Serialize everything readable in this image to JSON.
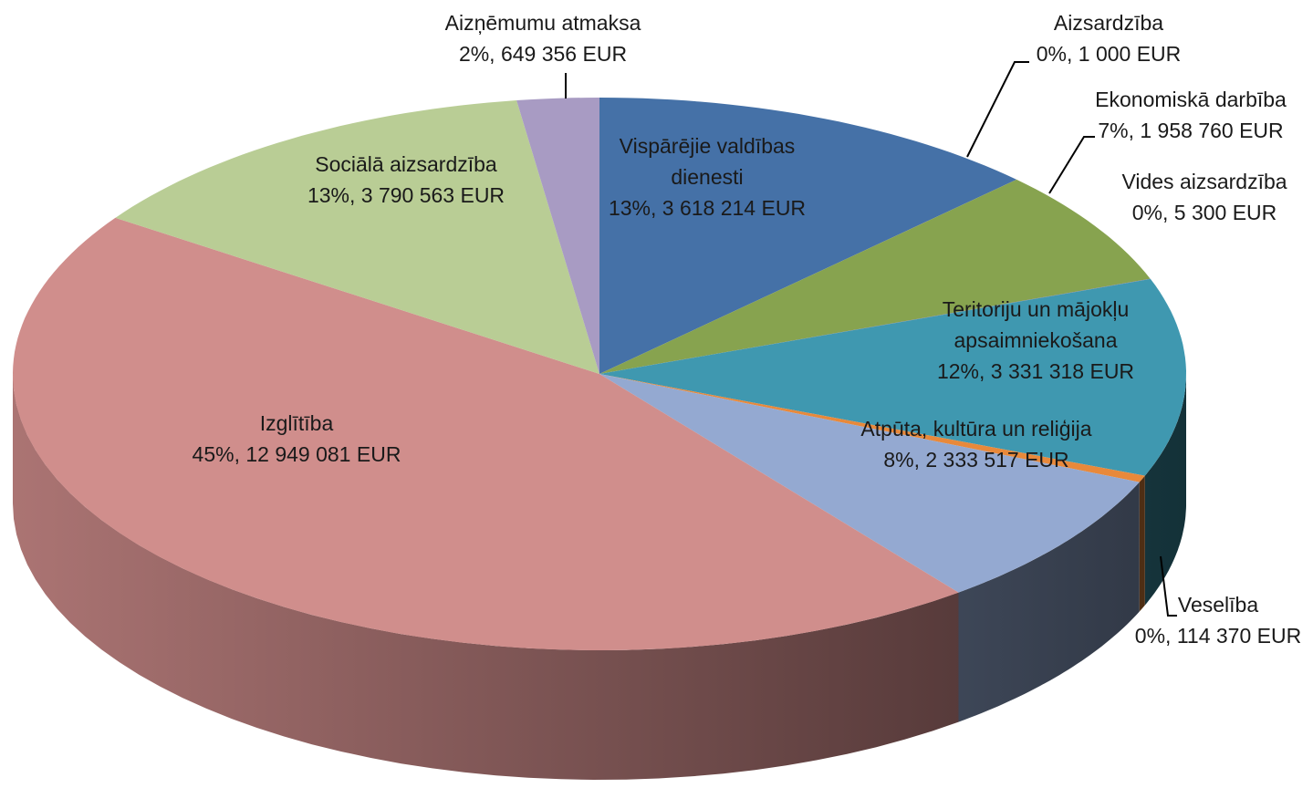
{
  "chart_data": {
    "type": "pie3d",
    "categories": [
      "Vispārējie valdības dienesti",
      "Aizsardzība",
      "Ekonomiskā darbība",
      "Vides aizsardzība",
      "Teritoriju un mājokļu apsaimniekošana",
      "Veselība",
      "Atpūta, kultūra un reliģija",
      "Izglītība",
      "Sociālā aizsardzība",
      "Aizņēmumu atmaksa"
    ],
    "values": [
      3618214,
      1000,
      1958760,
      5300,
      3331318,
      114370,
      2333517,
      12949081,
      3790563,
      649356
    ],
    "value_labels": [
      "13%, 3 618 214 EUR",
      "0%, 1 000 EUR",
      "7%, 1 958 760 EUR",
      "0%, 5 300 EUR",
      "12%, 3 331 318 EUR",
      "0%, 114 370 EUR",
      "8%, 2 333 517 EUR",
      "45%, 12 949 081 EUR",
      "13%, 3 790 563 EUR",
      "2%, 649 356 EUR"
    ],
    "colors": [
      "#4571a7",
      "#c0504d",
      "#87a34f",
      "#7d60a0",
      "#3f98b0",
      "#e8893b",
      "#94a9d1",
      "#d08e8c",
      "#b9cd95",
      "#a89bc3"
    ]
  }
}
